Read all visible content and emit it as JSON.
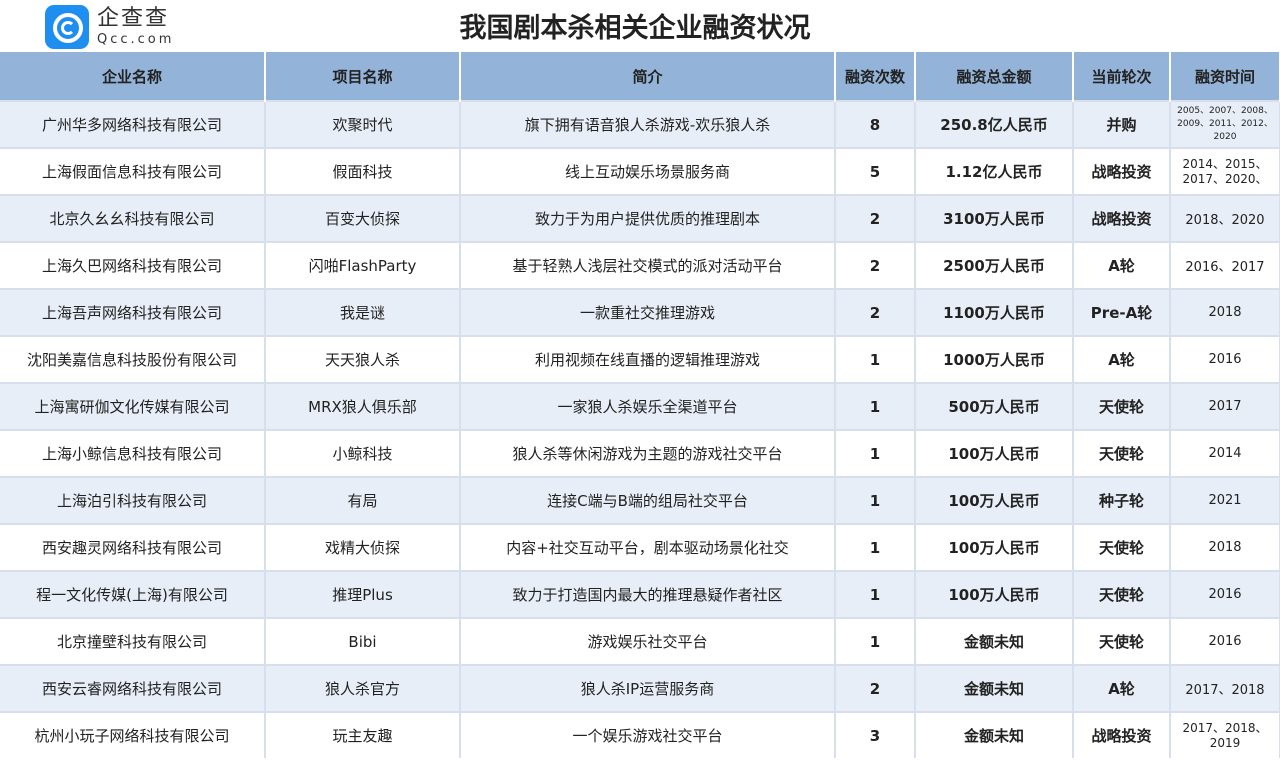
{
  "logo": {
    "cn": "企查查",
    "en": "Qcc.com"
  },
  "title": "我国剧本杀相关企业融资状况",
  "columns": [
    "企业名称",
    "项目名称",
    "简介",
    "融资次数",
    "融资总金额",
    "当前轮次",
    "融资时间"
  ],
  "rows": [
    [
      "广州华多网络科技有限公司",
      "欢聚时代",
      "旗下拥有语音狼人杀游戏-欢乐狼人杀",
      "8",
      "250.8亿人民币",
      "并购",
      "2005、2007、2008、2009、2011、2012、2020"
    ],
    [
      "上海假面信息科技有限公司",
      "假面科技",
      "线上互动娱乐场景服务商",
      "5",
      "1.12亿人民币",
      "战略投资",
      "2014、2015、2017、2020、"
    ],
    [
      "北京久幺幺科技有限公司",
      "百变大侦探",
      "致力于为用户提供优质的推理剧本",
      "2",
      "3100万人民币",
      "战略投资",
      "2018、2020"
    ],
    [
      "上海久巴网络科技有限公司",
      "闪啪FlashParty",
      "基于轻熟人浅层社交模式的派对活动平台",
      "2",
      "2500万人民币",
      "A轮",
      "2016、2017"
    ],
    [
      "上海吾声网络科技有限公司",
      "我是谜",
      "一款重社交推理游戏",
      "2",
      "1100万人民币",
      "Pre-A轮",
      "2018"
    ],
    [
      "沈阳美嘉信息科技股份有限公司",
      "天天狼人杀",
      "利用视频在线直播的逻辑推理游戏",
      "1",
      "1000万人民币",
      "A轮",
      "2016"
    ],
    [
      "上海寓研伽文化传媒有限公司",
      "MRX狼人俱乐部",
      "一家狼人杀娱乐全渠道平台",
      "1",
      "500万人民币",
      "天使轮",
      "2017"
    ],
    [
      "上海小鲸信息科技有限公司",
      "小鲸科技",
      "狼人杀等休闲游戏为主题的游戏社交平台",
      "1",
      "100万人民币",
      "天使轮",
      "2014"
    ],
    [
      "上海泊引科技有限公司",
      "有局",
      "连接C端与B端的组局社交平台",
      "1",
      "100万人民币",
      "种子轮",
      "2021"
    ],
    [
      "西安趣灵网络科技有限公司",
      "戏精大侦探",
      "内容+社交互动平台，剧本驱动场景化社交",
      "1",
      "100万人民币",
      "天使轮",
      "2018"
    ],
    [
      "程一文化传媒(上海)有限公司",
      "推理Plus",
      "致力于打造国内最大的推理悬疑作者社区",
      "1",
      "100万人民币",
      "天使轮",
      "2016"
    ],
    [
      "北京撞壁科技有限公司",
      "Bibi",
      "游戏娱乐社交平台",
      "1",
      "金额未知",
      "天使轮",
      "2016"
    ],
    [
      "西安云睿网络科技有限公司",
      "狼人杀官方",
      "狼人杀IP运营服务商",
      "2",
      "金额未知",
      "A轮",
      "2017、2018"
    ],
    [
      "杭州小玩子网络科技有限公司",
      "玩主友趣",
      "一个娱乐游戏社交平台",
      "3",
      "金额未知",
      "战略投资",
      "2017、2018、2019"
    ]
  ],
  "colors": {
    "header_bg": "#93b3d8",
    "alt_row_bg": "#e8eef7",
    "logo_blue": "#1f8ef1"
  }
}
